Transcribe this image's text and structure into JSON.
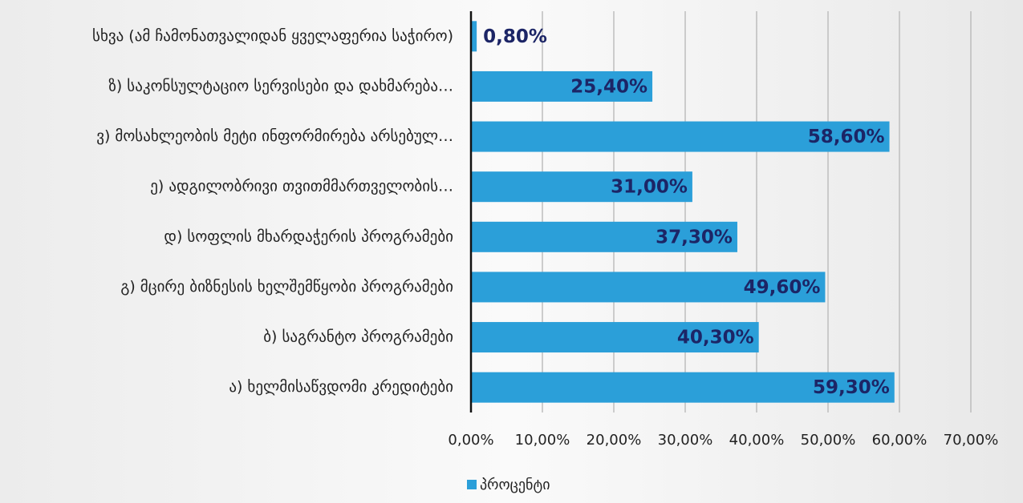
{
  "chart_data": {
    "type": "bar",
    "orientation": "horizontal",
    "categories": [
      "სხვა (ამ ჩამონათვალიდან ყველაფერია საჭირო)",
      "ზ) საკონსულტაციო სერვისები და დახმარება…",
      "ვ) მოსახლეობის მეტი ინფორმირება არსებულ…",
      "ე)  ადგილობრივი თვითმმართველობის…",
      "დ) სოფლის მხარდაჭერის პროგრამები",
      "გ) მცირე ბიზნესის ხელშემწყობი პროგრამები",
      "ბ) საგრანტო პროგრამები",
      "ა) ხელმისაწვდომი კრედიტები"
    ],
    "series": [
      {
        "name": "პროცენტი",
        "color": "#2b9fd9",
        "values": [
          0.8,
          25.4,
          58.6,
          31.0,
          37.3,
          49.6,
          40.3,
          59.3
        ],
        "value_labels": [
          "0,80%",
          "25,40%",
          "58,60%",
          "31,00%",
          "37,30%",
          "49,60%",
          "40,30%",
          "59,30%"
        ]
      }
    ],
    "xlim": [
      0,
      70
    ],
    "xticks": [
      {
        "value": 0,
        "label": "0,00%"
      },
      {
        "value": 10,
        "label": "10,00%"
      },
      {
        "value": 20,
        "label": "20,00%"
      },
      {
        "value": 30,
        "label": "30,00%"
      },
      {
        "value": 40,
        "label": "40,00%"
      },
      {
        "value": 50,
        "label": "50,00%"
      },
      {
        "value": 60,
        "label": "60,00%"
      },
      {
        "value": 70,
        "label": "70,00%"
      }
    ],
    "grid": true,
    "legend": "bottom"
  }
}
